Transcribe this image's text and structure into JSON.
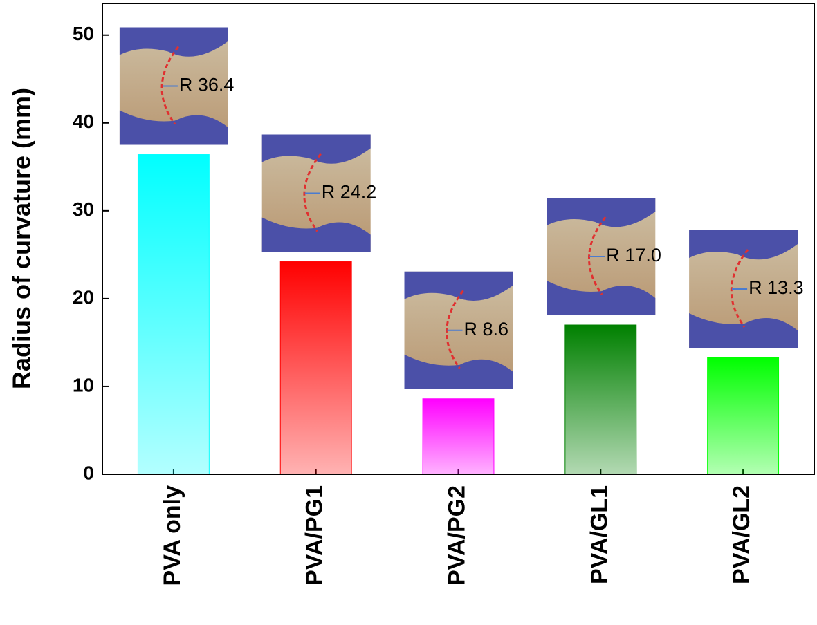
{
  "chart_data": {
    "type": "bar",
    "y_label": "Radius of curvature (mm)",
    "categories": [
      "PVA only",
      "PVA/PG1",
      "PVA/PG2",
      "PVA/GL1",
      "PVA/GL2"
    ],
    "values": [
      36.4,
      24.2,
      8.6,
      17.0,
      13.3
    ],
    "value_labels": [
      "R 36.4",
      "R 24.2",
      "R 8.6",
      "R 17.0",
      "R 13.3"
    ],
    "colors": [
      "#00ffff",
      "#ff0000",
      "#ff00ff",
      "#008000",
      "#00ff00"
    ],
    "ylim": [
      0,
      53.6
    ],
    "yticks": [
      0,
      10,
      20,
      30,
      40,
      50
    ]
  }
}
